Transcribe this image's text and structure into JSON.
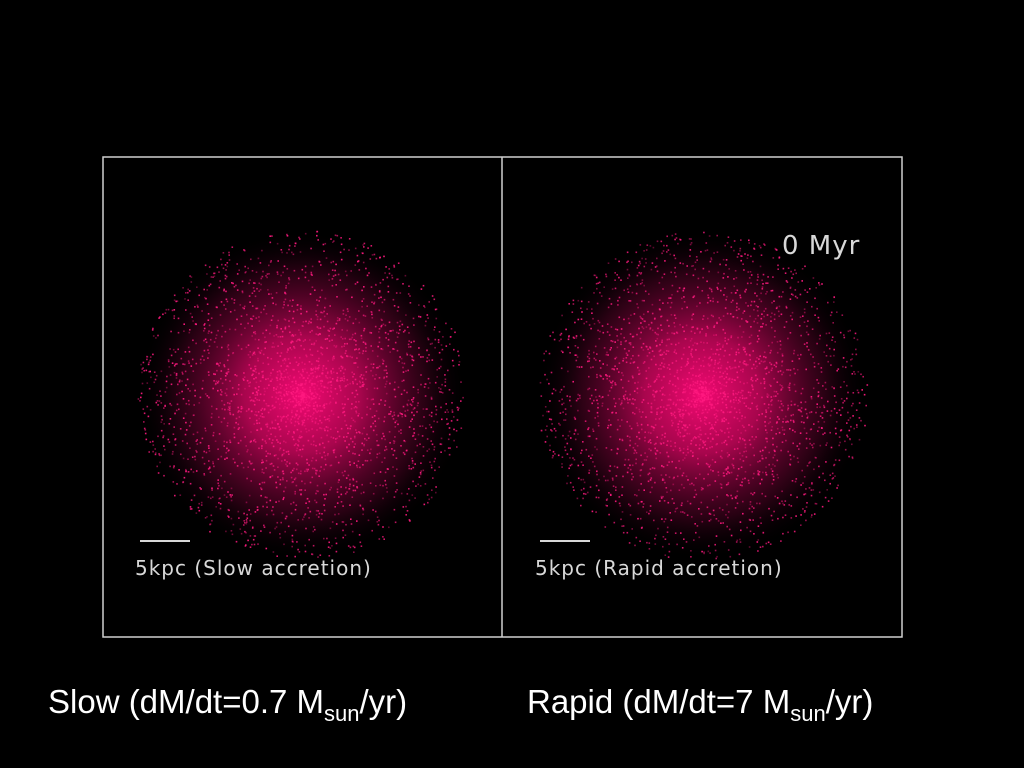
{
  "panels": [
    {
      "label": "5kpc (Slow accretion)"
    },
    {
      "time": "0 Myr",
      "label": "5kpc (Rapid accretion)"
    }
  ],
  "captions": [
    {
      "text": "Slow (dM/dt=0.7 M",
      "subscript": "sun",
      "suffix": "/yr)"
    },
    {
      "text": "Rapid (dM/dt=7 M",
      "subscript": "sun",
      "suffix": "/yr)"
    }
  ]
}
